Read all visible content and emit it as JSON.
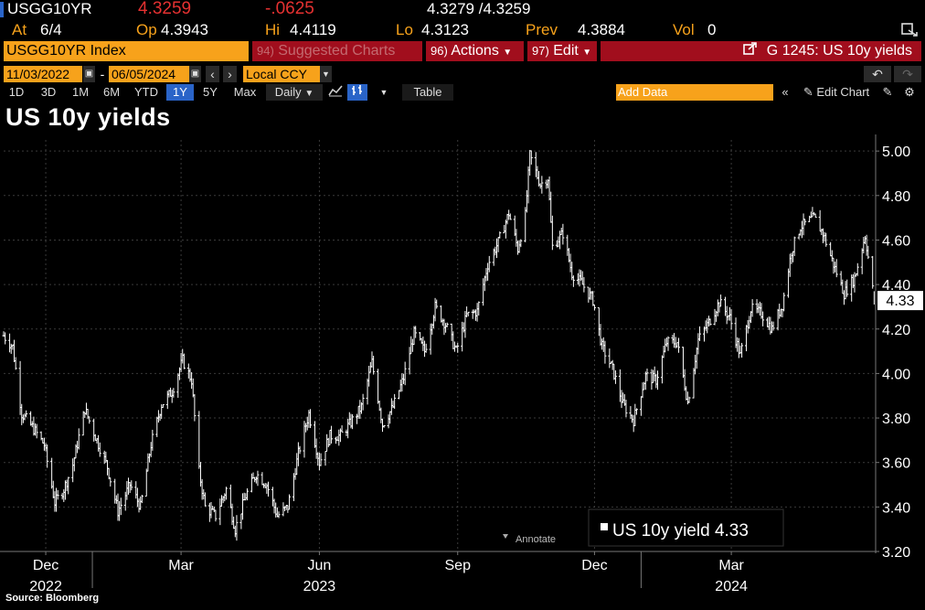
{
  "quote": {
    "ticker": "USGG10YR",
    "last": "4.3259",
    "change": "-.0625",
    "bid_ask": "4.3279 /4.3259",
    "at_label": "At",
    "at_value": "6/4",
    "open_label": "Op",
    "open_value": "4.3943",
    "high_label": "Hi",
    "high_value": "4.4119",
    "low_label": "Lo",
    "low_value": "4.3123",
    "prev_label": "Prev",
    "prev_value": "4.3884",
    "vol_label": "Vol",
    "vol_value": "0"
  },
  "toolbar": {
    "security": "USGG10YR Index",
    "suggested_num": "94)",
    "suggested_label": "Suggested Charts",
    "actions_num": "96)",
    "actions_label": "Actions",
    "edit_num": "97)",
    "edit_label": "Edit",
    "chart_id": "G 1245: US 10y yields"
  },
  "range": {
    "start_date": "11/03/2022",
    "separator": "-",
    "end_date": "06/05/2024",
    "currency": "Local CCY"
  },
  "periods": [
    "1D",
    "3D",
    "1M",
    "6M",
    "YTD",
    "1Y",
    "5Y",
    "Max"
  ],
  "selected_period": "1Y",
  "frequency": "Daily",
  "table_label": "Table",
  "add_data_placeholder": "Add Data",
  "edit_chart_label": "Edit Chart",
  "chart_title": "US 10y yields",
  "source": "Source: Bloomberg",
  "annotate_label": "Annotate",
  "legend": {
    "label": "US 10y yield",
    "value": "4.33"
  },
  "colors": {
    "accent": "#f7a21b",
    "toolbar_red": "#a10e1d",
    "negative": "#e53131",
    "series": "#ffffff",
    "selected": "#2a64c8"
  },
  "chart_data": {
    "type": "line",
    "title": "US 10y yields",
    "series": [
      {
        "name": "US 10y yield",
        "points": [
          [
            "2022-11-03",
            4.17
          ],
          [
            "2022-11-09",
            4.12
          ],
          [
            "2022-11-15",
            3.82
          ],
          [
            "2022-11-22",
            3.76
          ],
          [
            "2022-11-30",
            3.68
          ],
          [
            "2022-12-07",
            3.42
          ],
          [
            "2022-12-13",
            3.48
          ],
          [
            "2022-12-19",
            3.59
          ],
          [
            "2022-12-27",
            3.84
          ],
          [
            "2023-01-04",
            3.7
          ],
          [
            "2023-01-11",
            3.58
          ],
          [
            "2023-01-18",
            3.38
          ],
          [
            "2023-01-26",
            3.5
          ],
          [
            "2023-02-02",
            3.4
          ],
          [
            "2023-02-09",
            3.68
          ],
          [
            "2023-02-16",
            3.86
          ],
          [
            "2023-02-23",
            3.92
          ],
          [
            "2023-03-02",
            4.06
          ],
          [
            "2023-03-08",
            3.97
          ],
          [
            "2023-03-13",
            3.56
          ],
          [
            "2023-03-17",
            3.4
          ],
          [
            "2023-03-24",
            3.36
          ],
          [
            "2023-03-31",
            3.48
          ],
          [
            "2023-04-06",
            3.3
          ],
          [
            "2023-04-13",
            3.45
          ],
          [
            "2023-04-20",
            3.55
          ],
          [
            "2023-04-27",
            3.5
          ],
          [
            "2023-05-04",
            3.36
          ],
          [
            "2023-05-11",
            3.4
          ],
          [
            "2023-05-18",
            3.64
          ],
          [
            "2023-05-25",
            3.82
          ],
          [
            "2023-06-01",
            3.6
          ],
          [
            "2023-06-08",
            3.72
          ],
          [
            "2023-06-15",
            3.72
          ],
          [
            "2023-06-22",
            3.78
          ],
          [
            "2023-06-29",
            3.85
          ],
          [
            "2023-07-06",
            4.05
          ],
          [
            "2023-07-13",
            3.77
          ],
          [
            "2023-07-20",
            3.85
          ],
          [
            "2023-07-27",
            3.98
          ],
          [
            "2023-08-03",
            4.18
          ],
          [
            "2023-08-10",
            4.1
          ],
          [
            "2023-08-17",
            4.3
          ],
          [
            "2023-08-24",
            4.22
          ],
          [
            "2023-08-31",
            4.1
          ],
          [
            "2023-09-07",
            4.26
          ],
          [
            "2023-09-14",
            4.28
          ],
          [
            "2023-09-21",
            4.49
          ],
          [
            "2023-09-28",
            4.59
          ],
          [
            "2023-10-05",
            4.72
          ],
          [
            "2023-10-11",
            4.56
          ],
          [
            "2023-10-16",
            4.71
          ],
          [
            "2023-10-19",
            4.98
          ],
          [
            "2023-10-26",
            4.85
          ],
          [
            "2023-10-31",
            4.88
          ],
          [
            "2023-11-03",
            4.57
          ],
          [
            "2023-11-10",
            4.63
          ],
          [
            "2023-11-16",
            4.45
          ],
          [
            "2023-11-22",
            4.41
          ],
          [
            "2023-11-30",
            4.33
          ],
          [
            "2023-12-06",
            4.12
          ],
          [
            "2023-12-13",
            4.02
          ],
          [
            "2023-12-20",
            3.86
          ],
          [
            "2023-12-27",
            3.79
          ],
          [
            "2024-01-04",
            3.99
          ],
          [
            "2024-01-11",
            3.97
          ],
          [
            "2024-01-18",
            4.14
          ],
          [
            "2024-01-25",
            4.14
          ],
          [
            "2024-02-01",
            3.87
          ],
          [
            "2024-02-08",
            4.15
          ],
          [
            "2024-02-15",
            4.23
          ],
          [
            "2024-02-22",
            4.32
          ],
          [
            "2024-02-29",
            4.25
          ],
          [
            "2024-03-07",
            4.08
          ],
          [
            "2024-03-14",
            4.29
          ],
          [
            "2024-03-21",
            4.27
          ],
          [
            "2024-03-28",
            4.2
          ],
          [
            "2024-04-04",
            4.31
          ],
          [
            "2024-04-10",
            4.55
          ],
          [
            "2024-04-16",
            4.66
          ],
          [
            "2024-04-25",
            4.7
          ],
          [
            "2024-05-01",
            4.63
          ],
          [
            "2024-05-08",
            4.49
          ],
          [
            "2024-05-15",
            4.36
          ],
          [
            "2024-05-22",
            4.43
          ],
          [
            "2024-05-29",
            4.62
          ],
          [
            "2024-06-04",
            4.33
          ]
        ]
      }
    ],
    "ylim": [
      3.2,
      5.05
    ],
    "yticks": [
      3.2,
      3.4,
      3.6,
      3.8,
      4.0,
      4.2,
      4.4,
      4.6,
      4.8,
      5.0
    ],
    "xlim": [
      "2022-11-03",
      "2024-06-05"
    ],
    "xticks": [
      {
        "date": "2022-12-01",
        "label": "Dec"
      },
      {
        "date": "2023-03-01",
        "label": "Mar"
      },
      {
        "date": "2023-06-01",
        "label": "Jun"
      },
      {
        "date": "2023-09-01",
        "label": "Sep"
      },
      {
        "date": "2023-12-01",
        "label": "Dec"
      },
      {
        "date": "2024-03-01",
        "label": "Mar"
      }
    ],
    "year_labels": [
      {
        "date": "2022-12-01",
        "label": "2022"
      },
      {
        "date": "2023-06-01",
        "label": "2023"
      },
      {
        "date": "2024-03-01",
        "label": "2024"
      }
    ],
    "last_value_label": "4.33",
    "grid": true,
    "legend_position": "bottom-right"
  }
}
